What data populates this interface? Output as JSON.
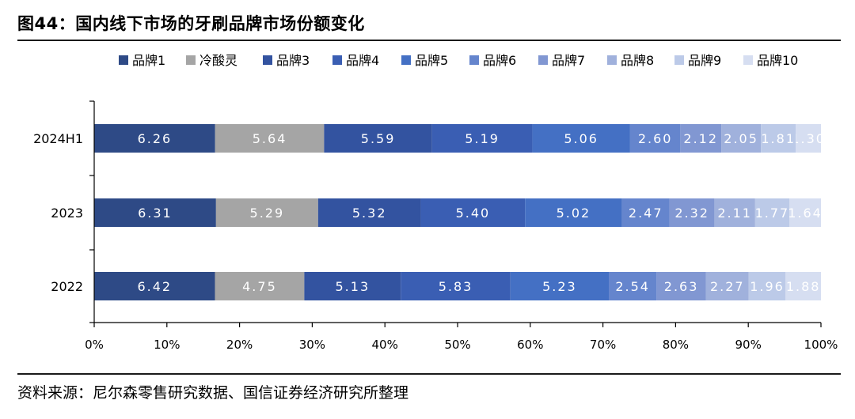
{
  "figure": {
    "title": "图44：国内线下市场的牙刷品牌市场份额变化",
    "source": "资料来源：尼尔森零售研究数据、国信证券经济研究所整理"
  },
  "chart_data": {
    "type": "bar",
    "orientation": "horizontal",
    "stacked": true,
    "categories": [
      "2024H1",
      "2023",
      "2022"
    ],
    "xlim": [
      0,
      100
    ],
    "xticks": [
      "0%",
      "10%",
      "20%",
      "30%",
      "40%",
      "50%",
      "60%",
      "70%",
      "80%",
      "90%",
      "100%"
    ],
    "legend_position": "top",
    "grid": false,
    "series": [
      {
        "name": "品牌1",
        "color": "#2e4a86",
        "label_color": "#ffffff",
        "values": [
          6.26,
          6.31,
          6.42
        ]
      },
      {
        "name": "冷酸灵",
        "color": "#a5a5a5",
        "label_color": "#ffffff",
        "values": [
          5.64,
          5.29,
          4.75
        ]
      },
      {
        "name": "品牌3",
        "color": "#3353a0",
        "label_color": "#ffffff",
        "values": [
          5.59,
          5.32,
          5.13
        ]
      },
      {
        "name": "品牌4",
        "color": "#3a5eb3",
        "label_color": "#ffffff",
        "values": [
          5.19,
          5.4,
          5.83
        ]
      },
      {
        "name": "品牌5",
        "color": "#4470c4",
        "label_color": "#ffffff",
        "values": [
          5.06,
          5.02,
          5.23
        ]
      },
      {
        "name": "品牌6",
        "color": "#6585cd",
        "label_color": "#ffffff",
        "values": [
          2.6,
          2.47,
          2.54
        ]
      },
      {
        "name": "品牌7",
        "color": "#8197d2",
        "label_color": "#ffffff",
        "values": [
          2.12,
          2.32,
          2.63
        ]
      },
      {
        "name": "品牌8",
        "color": "#a0b1dc",
        "label_color": "#ffffff",
        "values": [
          2.05,
          2.11,
          2.27
        ]
      },
      {
        "name": "品牌9",
        "color": "#bccae8",
        "label_color": "#ffffff",
        "values": [
          1.81,
          1.77,
          1.96
        ]
      },
      {
        "name": "品牌10",
        "color": "#d6def1",
        "label_color": "#ffffff",
        "values": [
          1.3,
          1.64,
          1.88
        ]
      }
    ]
  }
}
